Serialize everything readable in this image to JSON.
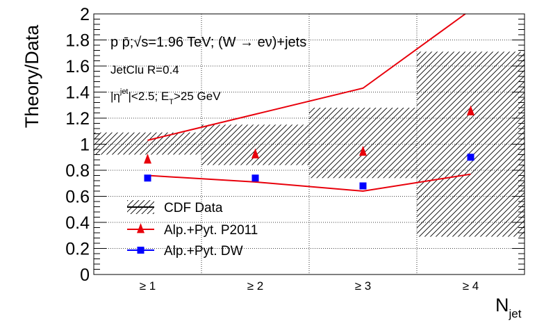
{
  "chart_data": {
    "type": "scatter",
    "ylabel": "Theory/Data",
    "xlabel_main": "N",
    "xlabel_sub": "jet",
    "categories": [
      "≥ 1",
      "≥ 2",
      "≥ 3",
      "≥ 4"
    ],
    "ylim": [
      0,
      2
    ],
    "yticks": [
      "0",
      "0.2",
      "0.4",
      "0.6",
      "0.8",
      "1",
      "1.2",
      "1.4",
      "1.6",
      "1.8",
      "2"
    ],
    "grid": true,
    "annotations": {
      "process": {
        "a": "p p̄;",
        "sqrt": "√s",
        "b": "=1.96 TeV; (W → eν)+jets"
      },
      "algo": "JetClu R=0.4",
      "cut": {
        "eta": "|η",
        "jet": "jet",
        "mid": "|<2.5; E",
        "t": "T",
        "end": ">25 GeV"
      }
    },
    "band": {
      "name": "CDF Data",
      "color": "#000000",
      "intervals": [
        [
          0.92,
          1.09
        ],
        [
          0.84,
          1.15
        ],
        [
          0.74,
          1.28
        ],
        [
          0.29,
          1.71
        ]
      ]
    },
    "envelope": {
      "color": "#e8000b",
      "upper": [
        1.03,
        1.23,
        1.43,
        2.03
      ],
      "lower": [
        0.76,
        0.71,
        0.64,
        0.77
      ]
    },
    "series": [
      {
        "name": "Alp.+Pyt. P2011",
        "marker": "triangle",
        "color": "#e8000b",
        "values": [
          0.88,
          0.92,
          0.94,
          1.25
        ]
      },
      {
        "name": "Alp.+Pyt. DW",
        "marker": "square",
        "color": "#0000ff",
        "values": [
          0.74,
          0.74,
          0.68,
          0.9
        ]
      }
    ],
    "legend": [
      "CDF Data",
      "Alp.+Pyt. P2011",
      "Alp.+Pyt. DW"
    ],
    "legend_position": "bottom-left"
  }
}
